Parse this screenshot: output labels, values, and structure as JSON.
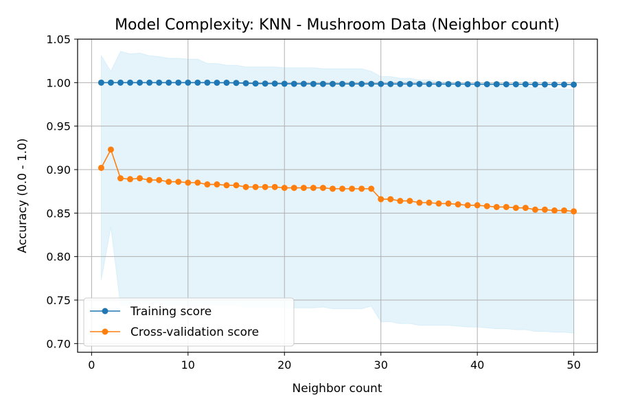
{
  "chart_data": {
    "type": "line",
    "title": "Model Complexity: KNN - Mushroom Data (Neighbor count)",
    "xlabel": "Neighbor count",
    "ylabel": "Accuracy (0.0 - 1.0)",
    "xlim": [
      -1.45,
      52.45
    ],
    "ylim": [
      0.69,
      1.05
    ],
    "xticks": [
      0,
      10,
      20,
      30,
      40,
      50
    ],
    "yticks": [
      0.7,
      0.75,
      0.8,
      0.85,
      0.9,
      0.95,
      1.0,
      1.05
    ],
    "ytick_labels": [
      "0.70",
      "0.75",
      "0.80",
      "0.85",
      "0.90",
      "0.95",
      "1.00",
      "1.05"
    ],
    "grid": true,
    "legend_position": "lower-left",
    "x": [
      1,
      2,
      3,
      4,
      5,
      6,
      7,
      8,
      9,
      10,
      11,
      12,
      13,
      14,
      15,
      16,
      17,
      18,
      19,
      20,
      21,
      22,
      23,
      24,
      25,
      26,
      27,
      28,
      29,
      30,
      31,
      32,
      33,
      34,
      35,
      36,
      37,
      38,
      39,
      40,
      41,
      42,
      43,
      44,
      45,
      46,
      47,
      48,
      49,
      50
    ],
    "series": [
      {
        "name": "Training score",
        "color": "#1f77b4",
        "values": [
          1.0,
          1.0,
          1.0,
          1.0,
          1.0,
          1.0,
          1.0,
          1.0,
          1.0,
          1.0,
          1.0,
          1.0,
          0.9999,
          0.9999,
          0.9997,
          0.9993,
          0.999,
          0.9989,
          0.9989,
          0.9987,
          0.9986,
          0.9986,
          0.9985,
          0.9985,
          0.9985,
          0.9985,
          0.9985,
          0.9985,
          0.9985,
          0.9985,
          0.9984,
          0.9984,
          0.9984,
          0.9984,
          0.9983,
          0.9983,
          0.9983,
          0.9983,
          0.9982,
          0.9982,
          0.9982,
          0.9982,
          0.9981,
          0.9981,
          0.9981,
          0.9979,
          0.9979,
          0.9978,
          0.9978,
          0.9977
        ]
      },
      {
        "name": "Cross-validation score",
        "color": "#ff7f0e",
        "values": [
          0.902,
          0.923,
          0.89,
          0.889,
          0.89,
          0.888,
          0.888,
          0.886,
          0.886,
          0.885,
          0.885,
          0.883,
          0.883,
          0.882,
          0.882,
          0.88,
          0.88,
          0.88,
          0.88,
          0.879,
          0.879,
          0.879,
          0.879,
          0.879,
          0.878,
          0.878,
          0.878,
          0.878,
          0.878,
          0.866,
          0.866,
          0.864,
          0.864,
          0.862,
          0.862,
          0.861,
          0.861,
          0.86,
          0.859,
          0.859,
          0.858,
          0.857,
          0.857,
          0.856,
          0.856,
          0.854,
          0.854,
          0.853,
          0.853,
          0.852
        ]
      }
    ],
    "band": {
      "color": "#87ceeb",
      "opacity": 0.22,
      "upper": [
        1.031,
        1.013,
        1.036,
        1.033,
        1.034,
        1.031,
        1.03,
        1.028,
        1.028,
        1.027,
        1.027,
        1.022,
        1.022,
        1.02,
        1.02,
        1.018,
        1.018,
        1.018,
        1.018,
        1.017,
        1.017,
        1.017,
        1.017,
        1.016,
        1.016,
        1.016,
        1.016,
        1.016,
        1.013,
        1.007,
        1.007,
        1.005,
        1.005,
        1.003,
        1.003,
        1.001,
        1.001,
        1.0,
        0.999,
        0.999,
        0.998,
        0.997,
        0.997,
        0.996,
        0.996,
        0.994,
        0.994,
        0.993,
        0.993,
        0.992
      ],
      "lower": [
        0.773,
        0.834,
        0.744,
        0.745,
        0.746,
        0.745,
        0.746,
        0.744,
        0.744,
        0.743,
        0.743,
        0.744,
        0.744,
        0.744,
        0.744,
        0.742,
        0.742,
        0.742,
        0.742,
        0.741,
        0.741,
        0.741,
        0.741,
        0.742,
        0.74,
        0.74,
        0.74,
        0.74,
        0.743,
        0.725,
        0.725,
        0.723,
        0.723,
        0.721,
        0.721,
        0.721,
        0.721,
        0.72,
        0.719,
        0.719,
        0.718,
        0.717,
        0.717,
        0.716,
        0.716,
        0.714,
        0.714,
        0.713,
        0.713,
        0.712
      ]
    }
  }
}
